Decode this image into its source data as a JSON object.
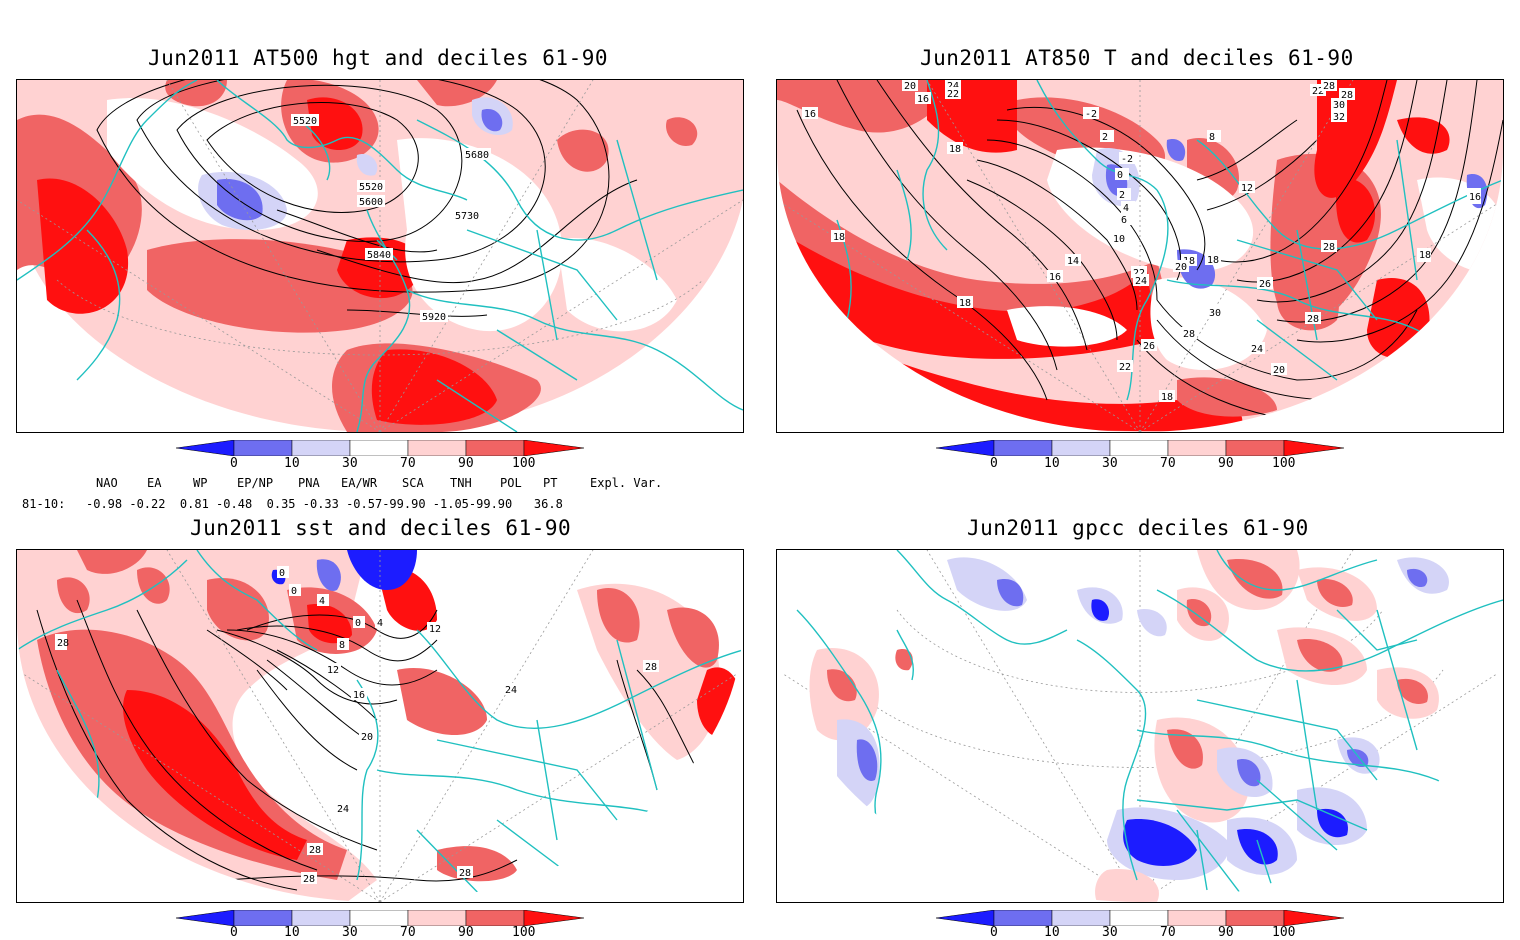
{
  "titles": {
    "p1": "Jun2011 AT500 hgt and deciles 61-90",
    "p2": "Jun2011 AT850 T and deciles 61-90",
    "p3": "Jun2011 sst and deciles 61-90",
    "p4": "Jun2011 gpcc deciles 61-90"
  },
  "colorbar": {
    "labels": [
      "0",
      "10",
      "30",
      "70",
      "90",
      "100"
    ],
    "colors": [
      "#1c1cff",
      "#6e6ef0",
      "#d4d4f7",
      "#ffffff",
      "#ffd2d2",
      "#f06464",
      "#ff1010"
    ]
  },
  "indices": {
    "names": [
      "NAO",
      "EA",
      "WP",
      "EP/NP",
      "PNA",
      "EA/WR",
      "SCA",
      "TNH",
      "POL",
      "PT",
      "Expl. Var."
    ],
    "period": "81-10:",
    "values": "-0.98 -0.22  0.81 -0.48  0.35 -0.33 -0.57-99.90 -1.05-99.90   36.8"
  },
  "contour_labels": {
    "p1": [
      "5520",
      "5520",
      "5600",
      "5680",
      "5730",
      "5840",
      "5920"
    ],
    "p2": [
      "16",
      "20",
      "16",
      "18",
      "24",
      "22",
      "-2",
      "2",
      "-2",
      "0",
      "2",
      "4",
      "6",
      "8",
      "10",
      "12",
      "14",
      "16",
      "18",
      "18",
      "18",
      "20",
      "22",
      "24",
      "26",
      "28",
      "30",
      "28",
      "26",
      "24",
      "22",
      "20",
      "18",
      "18",
      "22",
      "28",
      "30",
      "32",
      "28",
      "28",
      "16",
      "18"
    ],
    "p3": [
      "28",
      "0",
      "0",
      "0",
      "4",
      "4",
      "8",
      "12",
      "12",
      "16",
      "20",
      "24",
      "24",
      "28",
      "28",
      "28",
      "28"
    ]
  }
}
